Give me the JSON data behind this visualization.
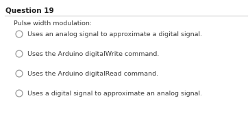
{
  "title": "Question 19",
  "question_text": "Pulse width modulation:",
  "options": [
    "Uses an analog signal to approximate a digital signal.",
    "Uses the Arduino digitalWrite command.",
    "Uses the Arduino digitalRead command.",
    "Uses a digital signal to approximate an analog signal."
  ],
  "bg_color": "#ffffff",
  "title_fontsize": 7.5,
  "option_fontsize": 6.8,
  "question_fontsize": 6.8,
  "text_color": "#3d3d3d",
  "circle_edgecolor": "#999999",
  "line_color": "#cccccc",
  "title_color": "#222222"
}
